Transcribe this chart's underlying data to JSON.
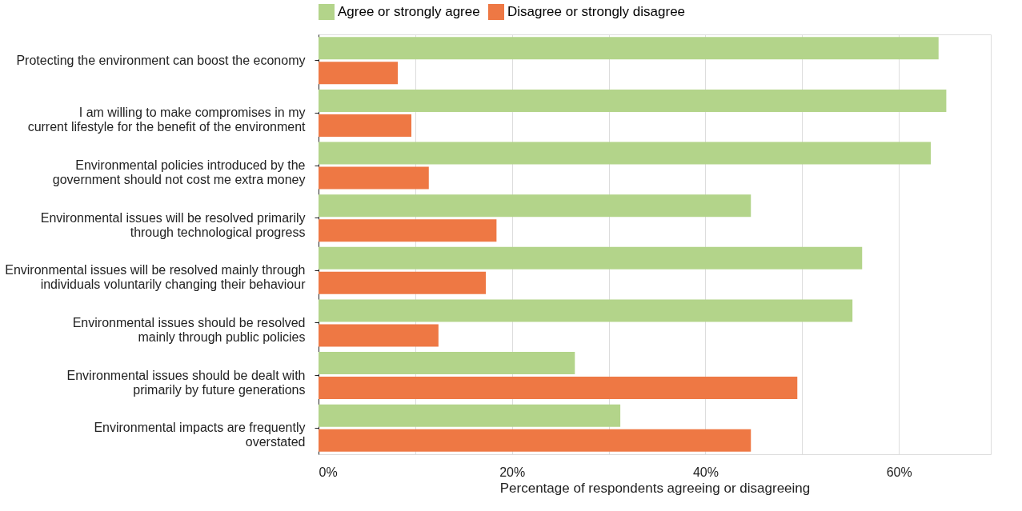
{
  "chart_data": {
    "type": "bar",
    "orientation": "horizontal",
    "xlabel": "Percentage of respondents agreeing or disagreeing",
    "categories": [
      "Protecting the environment can boost the economy",
      "I am willing to make compromises in my\ncurrent lifestyle for the benefit of the environment",
      "Environmental policies introduced by the\ngovernment should not cost me extra money",
      "Environmental issues will be resolved primarily\nthrough technological progress",
      "Environmental issues will be resolved mainly through\nindividuals voluntarily changing their behaviour",
      "Environmental issues should be resolved\nmainly through public policies",
      "Environmental issues should be dealt with\nprimarily by future generations",
      "Environmental impacts are frequently\noverstated"
    ],
    "series": [
      {
        "name": "Agree or strongly agree",
        "color": "#b3d48a",
        "values": [
          64.1,
          64.9,
          63.3,
          44.7,
          56.2,
          55.2,
          26.5,
          31.2
        ]
      },
      {
        "name": "Disagree or strongly disagree",
        "color": "#ee7844",
        "values": [
          8.2,
          9.6,
          11.4,
          18.4,
          17.3,
          12.4,
          49.5,
          44.7
        ]
      }
    ],
    "xlim": [
      0,
      69.5
    ],
    "xticks": [
      {
        "value": 0,
        "label": "0%"
      },
      {
        "value": 10,
        "label": null
      },
      {
        "value": 20,
        "label": "20%"
      },
      {
        "value": 30,
        "label": null
      },
      {
        "value": 40,
        "label": "40%"
      },
      {
        "value": 50,
        "label": null
      },
      {
        "value": 60,
        "label": "60%"
      }
    ],
    "grid": "x",
    "legend": "top"
  }
}
